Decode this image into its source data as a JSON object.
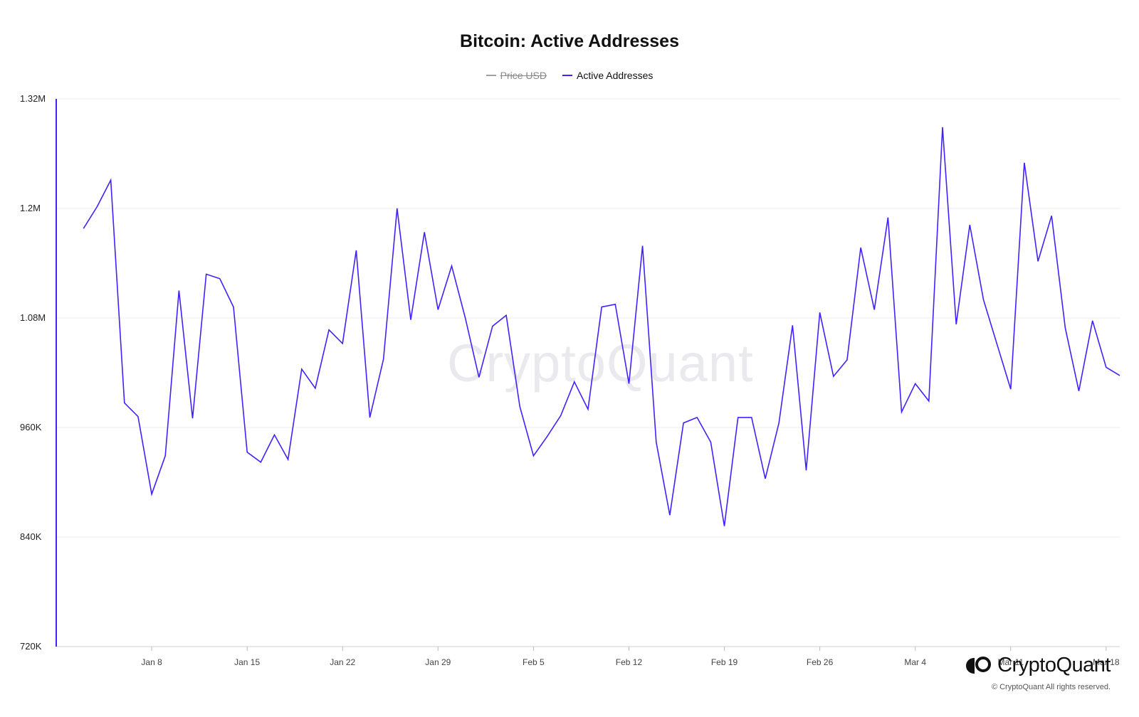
{
  "chart_data": {
    "type": "line",
    "title": "Bitcoin: Active Addresses",
    "legend": [
      {
        "name": "Price USD",
        "color": "#9aa0a6",
        "hidden": true
      },
      {
        "name": "Active Addresses",
        "color": "#3f22ff",
        "hidden": false
      }
    ],
    "legend_position": "top-center",
    "y_axis": {
      "min": 720000,
      "max": 1320000,
      "ticks": [
        {
          "value": 720000,
          "label": "720K"
        },
        {
          "value": 840000,
          "label": "840K"
        },
        {
          "value": 960000,
          "label": "960K"
        },
        {
          "value": 1080000,
          "label": "1.08M"
        },
        {
          "value": 1200000,
          "label": "1.2M"
        },
        {
          "value": 1320000,
          "label": "1.32M"
        }
      ]
    },
    "x_axis": {
      "start": "2024-01-01",
      "end": "2024-03-19",
      "ticks": [
        {
          "date": "2024-01-08",
          "label": "Jan 8"
        },
        {
          "date": "2024-01-15",
          "label": "Jan 15"
        },
        {
          "date": "2024-01-22",
          "label": "Jan 22"
        },
        {
          "date": "2024-01-29",
          "label": "Jan 29"
        },
        {
          "date": "2024-02-05",
          "label": "Feb 5"
        },
        {
          "date": "2024-02-12",
          "label": "Feb 12"
        },
        {
          "date": "2024-02-19",
          "label": "Feb 19"
        },
        {
          "date": "2024-02-26",
          "label": "Feb 26"
        },
        {
          "date": "2024-03-04",
          "label": "Mar 4"
        },
        {
          "date": "2024-03-11",
          "label": "Mar 11"
        },
        {
          "date": "2024-03-18",
          "label": "Mar 18"
        }
      ]
    },
    "grid": true,
    "series": [
      {
        "name": "Active Addresses",
        "color": "#3f22ff",
        "start_date": "2024-01-03",
        "values": [
          1178000,
          1202000,
          1231000,
          987000,
          972000,
          887000,
          929000,
          1110000,
          970000,
          1128000,
          1123000,
          1092000,
          933000,
          922000,
          952000,
          925000,
          1024000,
          1003000,
          1067000,
          1052000,
          1154000,
          971000,
          1035000,
          1200000,
          1078000,
          1174000,
          1089000,
          1137000,
          1080000,
          1015000,
          1071000,
          1083000,
          983000,
          929000,
          950000,
          973000,
          1010000,
          980000,
          1092000,
          1095000,
          1008000,
          1159000,
          944000,
          864000,
          965000,
          971000,
          944000,
          852000,
          971000,
          971000,
          904000,
          965000,
          1072000,
          913000,
          1086000,
          1016000,
          1034000,
          1157000,
          1089000,
          1190000,
          977000,
          1008000,
          989000,
          1289000,
          1073000,
          1182000,
          1100000,
          1051000,
          1002000,
          1250000,
          1142000,
          1192000,
          1069000,
          1000000,
          1077000,
          1026000,
          1017000
        ]
      }
    ]
  },
  "watermark": "CryptoQuant",
  "brand": {
    "name": "CryptoQuant",
    "copyright": "© CryptoQuant All rights reserved."
  }
}
